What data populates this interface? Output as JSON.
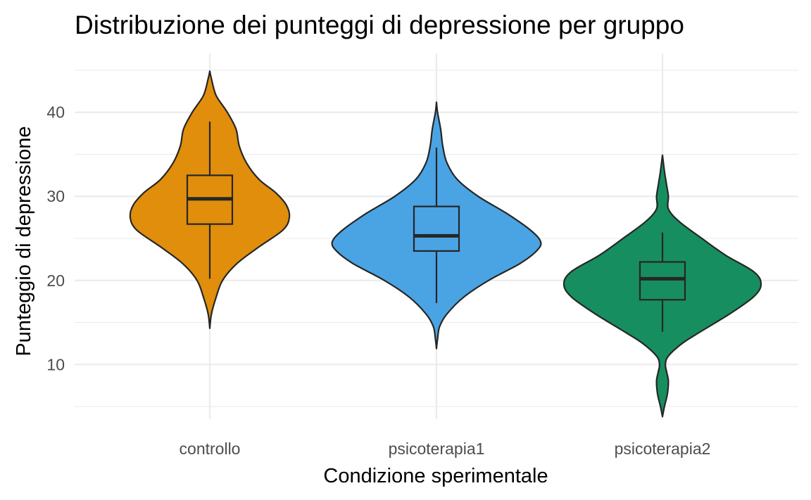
{
  "chart_data": {
    "type": "violin",
    "title": "Distribuzione dei punteggi di depressione per gruppo",
    "xlabel": "Condizione sperimentale",
    "ylabel": "Punteggio di depressione",
    "categories": [
      "controllo",
      "psicoterapia1",
      "psicoterapia2"
    ],
    "colors": [
      "#E08E0B",
      "#4AA4E4",
      "#178E5F"
    ],
    "ylim": [
      3.5,
      47.0
    ],
    "yticks": [
      10,
      20,
      30,
      40
    ],
    "ytick_labels": [
      "10",
      "20",
      "30",
      "40"
    ],
    "grid": true,
    "legend": "none",
    "groups": [
      {
        "name": "controllo",
        "box": {
          "whisker_low": 20.2,
          "q1": 26.7,
          "median": 29.7,
          "q3": 32.5,
          "whisker_high": 38.9
        },
        "density": {
          "y": [
            14.3,
            16.0,
            18.0,
            20.0,
            22.0,
            24.0,
            26.0,
            27.5,
            29.0,
            30.5,
            32.0,
            34.0,
            36.0,
            38.0,
            40.0,
            42.0,
            44.0,
            44.9
          ],
          "w": [
            0.0,
            0.02,
            0.08,
            0.16,
            0.34,
            0.62,
            0.92,
            1.0,
            0.96,
            0.82,
            0.62,
            0.46,
            0.37,
            0.33,
            0.22,
            0.08,
            0.02,
            0.0
          ]
        }
      },
      {
        "name": "psicoterapia1",
        "box": {
          "whisker_low": 17.3,
          "q1": 23.5,
          "median": 25.3,
          "q3": 28.8,
          "whisker_high": 35.8
        },
        "density": {
          "y": [
            11.9,
            13.0,
            14.5,
            16.0,
            18.0,
            20.0,
            22.0,
            23.5,
            24.6,
            26.0,
            28.0,
            30.0,
            32.0,
            34.0,
            36.0,
            38.0,
            40.0,
            41.2
          ],
          "w": [
            0.0,
            0.01,
            0.03,
            0.1,
            0.26,
            0.5,
            0.8,
            0.96,
            1.0,
            0.9,
            0.67,
            0.4,
            0.2,
            0.1,
            0.06,
            0.04,
            0.01,
            0.0
          ]
        }
      },
      {
        "name": "psicoterapia2",
        "box": {
          "whisker_low": 13.9,
          "q1": 17.7,
          "median": 20.2,
          "q3": 22.2,
          "whisker_high": 25.7
        },
        "density": {
          "y": [
            3.8,
            5.0,
            6.5,
            8.0,
            9.0,
            10.0,
            11.0,
            12.5,
            14.0,
            16.0,
            18.0,
            19.5,
            21.0,
            23.0,
            25.0,
            27.0,
            28.5,
            30.0,
            31.5,
            33.0,
            34.9
          ],
          "w": [
            0.0,
            0.02,
            0.05,
            0.06,
            0.045,
            0.03,
            0.06,
            0.2,
            0.4,
            0.68,
            0.92,
            1.0,
            0.93,
            0.64,
            0.4,
            0.17,
            0.06,
            0.06,
            0.04,
            0.02,
            0.0
          ]
        }
      }
    ]
  }
}
